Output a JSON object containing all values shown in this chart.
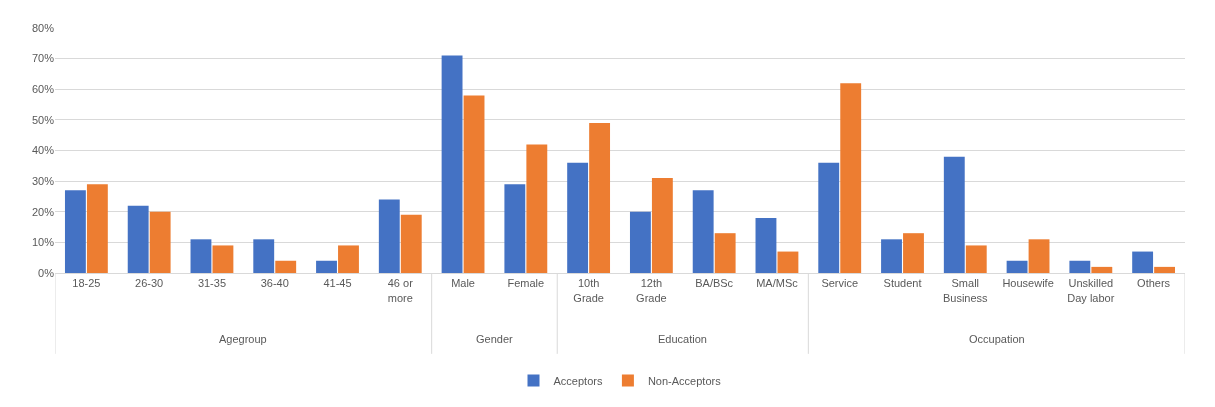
{
  "chart_data": {
    "type": "bar",
    "categories": [
      "18-25",
      "26-30",
      "31-35",
      "36-40",
      "41-45",
      "46 or more",
      "Male",
      "Female",
      "10th Grade",
      "12th Grade",
      "BA/BSc",
      "MA/MSc",
      "Service",
      "Student",
      "Small Business",
      "Housewife",
      "Unskilled Day labor",
      "Others"
    ],
    "series": [
      {
        "name": "Acceptors",
        "color": "#4472c4",
        "values": [
          27,
          22,
          11,
          11,
          4,
          24,
          71,
          29,
          36,
          20,
          27,
          18,
          36,
          11,
          38,
          4,
          4,
          7
        ]
      },
      {
        "name": "Non-Acceptors",
        "color": "#ed7d31",
        "values": [
          29,
          20,
          9,
          4,
          9,
          19,
          58,
          42,
          49,
          31,
          13,
          7,
          62,
          13,
          9,
          11,
          2,
          2
        ]
      }
    ],
    "ylim": [
      0,
      80
    ],
    "yticks": [
      {
        "value": 0,
        "label": "0%"
      },
      {
        "value": 10,
        "label": "10%"
      },
      {
        "value": 20,
        "label": "20%"
      },
      {
        "value": 30,
        "label": "30%"
      },
      {
        "value": 40,
        "label": "40%"
      },
      {
        "value": 50,
        "label": "50%"
      },
      {
        "value": 60,
        "label": "60%"
      },
      {
        "value": 70,
        "label": "70%"
      },
      {
        "value": 80,
        "label": "80%"
      }
    ],
    "annotations": [
      "Agegroup",
      "Gender",
      "Education",
      "Occupation"
    ],
    "grid": "y",
    "legend": "bottom"
  }
}
